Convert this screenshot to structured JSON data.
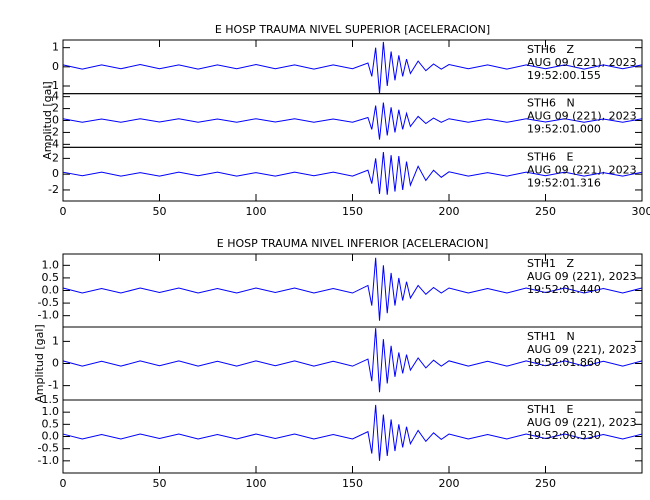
{
  "chart_data": [
    {
      "type": "line",
      "title": "E HOSP TRAUMA NIVEL SUPERIOR [ACELERACION]",
      "ylabel": "Amplitud [gal]",
      "color": "#0000ff",
      "xlim": [
        0,
        300
      ],
      "xticks": [
        0,
        50,
        100,
        150,
        200,
        250,
        300
      ],
      "x": [
        0,
        10,
        20,
        30,
        40,
        50,
        60,
        70,
        80,
        90,
        100,
        110,
        120,
        130,
        140,
        150,
        158,
        160,
        162,
        164,
        166,
        168,
        170,
        172,
        174,
        176,
        178,
        180,
        184,
        188,
        192,
        196,
        200,
        210,
        220,
        230,
        240,
        250,
        260,
        270,
        280,
        290,
        300
      ],
      "panels": [
        {
          "station": "STH6   Z",
          "date": "AUG 09 (221), 2023",
          "time": "19:52:00.155",
          "ylim": [
            -1.4,
            1.4
          ],
          "yticks": [
            -1,
            0,
            1
          ],
          "values": [
            0.1,
            -0.12,
            0.1,
            -0.1,
            0.12,
            -0.1,
            0.1,
            -0.12,
            0.1,
            -0.1,
            0.12,
            -0.1,
            0.1,
            -0.12,
            0.1,
            -0.1,
            0.2,
            -0.5,
            1.0,
            -1.4,
            1.3,
            -1.0,
            0.8,
            -0.7,
            0.6,
            -0.5,
            0.4,
            -0.35,
            0.3,
            -0.2,
            0.15,
            -0.12,
            0.12,
            -0.1,
            0.1,
            -0.12,
            0.1,
            -0.1,
            0.1,
            -0.12,
            0.1,
            -0.1,
            0.1
          ]
        },
        {
          "station": "STH6   N",
          "date": "AUG 09 (221), 2023",
          "time": "19:52:01.000",
          "ylim": [
            -4.5,
            4.5
          ],
          "yticks": [
            -4,
            -2,
            0,
            2,
            4
          ],
          "values": [
            0.3,
            -0.3,
            0.25,
            -0.3,
            0.3,
            -0.25,
            0.3,
            -0.3,
            0.25,
            -0.3,
            0.3,
            -0.25,
            0.3,
            -0.3,
            0.25,
            -0.3,
            0.5,
            -1.5,
            2.5,
            -3.2,
            3.0,
            -2.5,
            2.2,
            -2.0,
            1.8,
            -1.5,
            1.2,
            -1.0,
            0.7,
            -0.5,
            0.4,
            -0.3,
            0.3,
            -0.3,
            0.25,
            -0.3,
            0.3,
            -0.25,
            0.3,
            -0.3,
            0.25,
            -0.3,
            0.3
          ]
        },
        {
          "station": "STH6   E",
          "date": "AUG 09 (221), 2023",
          "time": "19:52:01.316",
          "ylim": [
            -3.4,
            3.4
          ],
          "yticks": [
            -2,
            0,
            2
          ],
          "values": [
            0.25,
            -0.2,
            0.25,
            -0.25,
            0.2,
            -0.25,
            0.25,
            -0.2,
            0.25,
            -0.25,
            0.2,
            -0.25,
            0.25,
            -0.2,
            0.25,
            -0.25,
            0.5,
            -1.2,
            2.0,
            -2.5,
            2.8,
            -2.6,
            2.4,
            -2.2,
            2.3,
            -2.0,
            1.6,
            -1.4,
            1.0,
            -0.8,
            0.5,
            -0.4,
            0.3,
            -0.25,
            0.2,
            -0.25,
            0.25,
            -0.2,
            0.25,
            -0.25,
            0.2,
            -0.25,
            0.25
          ]
        }
      ]
    },
    {
      "type": "line",
      "title": "E HOSP TRAUMA NIVEL INFERIOR [ACELERACION]",
      "ylabel": "Amplitud [gal]",
      "color": "#0000ff",
      "xlim": [
        0,
        300
      ],
      "xticks": [
        0,
        50,
        100,
        150,
        200,
        250
      ],
      "x": [
        0,
        10,
        20,
        30,
        40,
        50,
        60,
        70,
        80,
        90,
        100,
        110,
        120,
        130,
        140,
        150,
        158,
        160,
        162,
        164,
        166,
        168,
        170,
        172,
        174,
        176,
        178,
        180,
        184,
        188,
        192,
        196,
        200,
        210,
        220,
        230,
        240,
        250,
        260,
        270,
        280,
        290,
        300
      ],
      "panels": [
        {
          "station": "STH1   Z",
          "date": "AUG 09 (221), 2023",
          "time": "19:52:01.440",
          "ylim": [
            -1.45,
            1.45
          ],
          "yticks": [
            {
              "value": -1.0,
              "label": "-1.0"
            },
            -0.5,
            {
              "value": 0.0,
              "label": "0.0"
            },
            0.5,
            {
              "value": 1.0,
              "label": "1.0"
            }
          ],
          "values": [
            0.1,
            -0.1,
            0.08,
            -0.1,
            0.1,
            -0.08,
            0.1,
            -0.1,
            0.08,
            -0.1,
            0.1,
            -0.08,
            0.1,
            -0.1,
            0.08,
            -0.1,
            0.2,
            -0.6,
            1.3,
            -1.2,
            1.0,
            -0.9,
            0.7,
            -0.6,
            0.5,
            -0.4,
            0.35,
            -0.3,
            0.2,
            -0.15,
            0.12,
            -0.1,
            0.1,
            -0.1,
            0.08,
            -0.1,
            0.1,
            -0.08,
            0.1,
            -0.1,
            0.08,
            -0.1,
            0.1
          ]
        },
        {
          "station": "STH1   N",
          "date": "AUG 09 (221), 2023",
          "time": "19:52:01.860",
          "ylim": [
            -1.65,
            1.65
          ],
          "yticks": [
            -1,
            0,
            1
          ],
          "values": [
            0.12,
            -0.12,
            0.1,
            -0.12,
            0.12,
            -0.1,
            0.12,
            -0.12,
            0.1,
            -0.12,
            0.12,
            -0.1,
            0.12,
            -0.12,
            0.1,
            -0.12,
            0.2,
            -0.8,
            1.6,
            -1.3,
            1.1,
            -0.9,
            0.8,
            -0.6,
            0.5,
            -0.45,
            0.4,
            -0.3,
            0.25,
            -0.2,
            0.15,
            -0.12,
            0.12,
            -0.12,
            0.1,
            -0.12,
            0.12,
            -0.1,
            0.12,
            -0.12,
            0.1,
            -0.12,
            0.12
          ]
        },
        {
          "station": "STH1   E",
          "date": "AUG 09 (221), 2023",
          "time": "19:52:00.530",
          "ylim": [
            -1.5,
            1.5
          ],
          "yticks": [
            {
              "value": -1.0,
              "label": "-1.0"
            },
            -0.5,
            {
              "value": 0.0,
              "label": "0.0"
            },
            0.5,
            {
              "value": 1.0,
              "label": "1.0"
            },
            1.5
          ],
          "values": [
            0.1,
            -0.1,
            0.08,
            -0.1,
            0.1,
            -0.08,
            0.1,
            -0.1,
            0.08,
            -0.1,
            0.1,
            -0.08,
            0.1,
            -0.1,
            0.08,
            -0.1,
            0.2,
            -0.7,
            1.3,
            -1.0,
            0.9,
            -0.8,
            0.7,
            -0.6,
            0.5,
            -0.45,
            0.4,
            -0.3,
            0.25,
            -0.2,
            0.15,
            -0.12,
            0.1,
            -0.1,
            0.08,
            -0.1,
            0.1,
            -0.08,
            0.1,
            -0.1,
            0.08,
            -0.1,
            0.1
          ]
        }
      ]
    }
  ]
}
